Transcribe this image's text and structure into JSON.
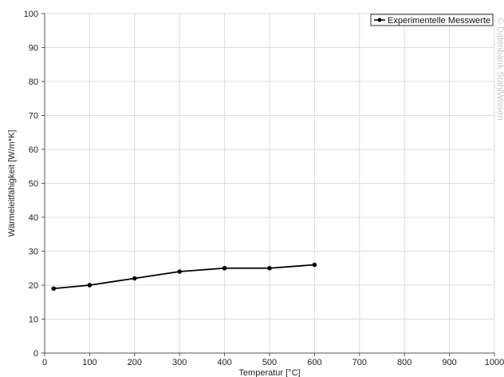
{
  "chart_data": {
    "type": "line",
    "xlabel": "Temperatur [°C]",
    "ylabel": "Wärmeleitfähigkeit [W/m*K]",
    "xlim": [
      0,
      1000
    ],
    "ylim": [
      0,
      100
    ],
    "x_ticks": [
      0,
      100,
      200,
      300,
      400,
      500,
      600,
      700,
      800,
      900,
      1000
    ],
    "y_ticks": [
      0,
      10,
      20,
      30,
      40,
      50,
      60,
      70,
      80,
      90,
      100
    ],
    "grid": true,
    "legend_position": "top-right",
    "series": [
      {
        "name": "Experimentelle Messwerte",
        "color": "#000000",
        "marker": "circle",
        "x": [
          20,
          100,
          200,
          300,
          400,
          500,
          600
        ],
        "y": [
          19,
          20,
          22,
          24,
          25,
          25,
          26
        ]
      }
    ],
    "watermark": "© Datenbank StahlWissen"
  }
}
